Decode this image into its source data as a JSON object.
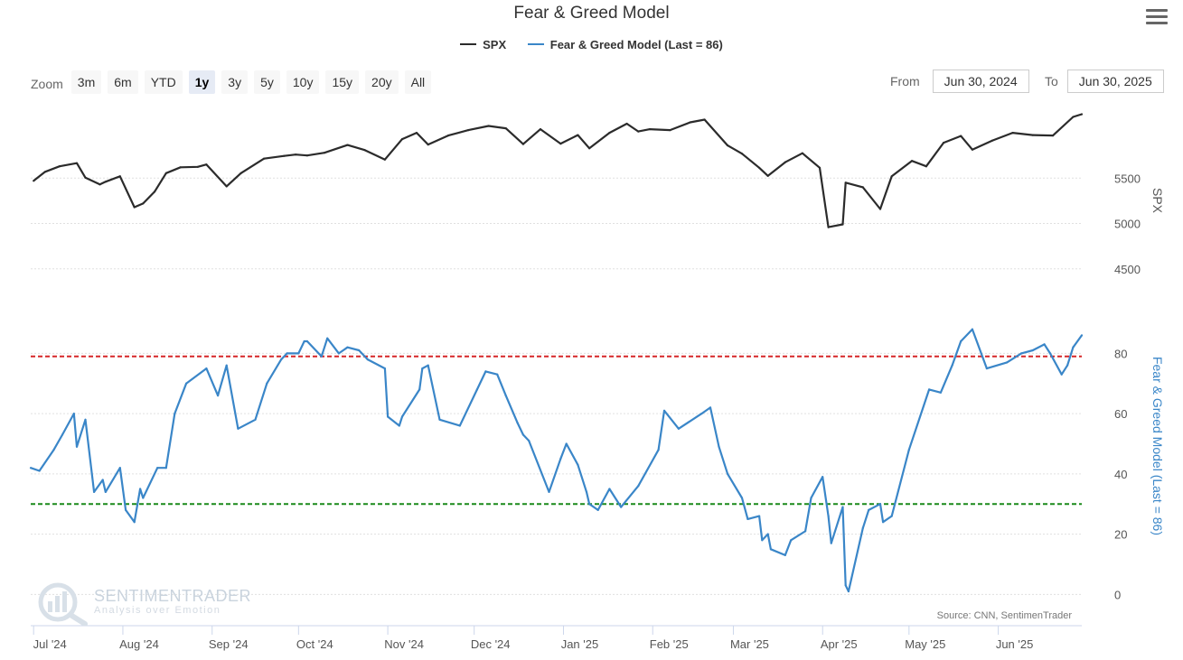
{
  "header": {
    "title": "Fear & Greed Model"
  },
  "legend": {
    "spx": "SPX",
    "fg": "Fear & Greed Model (Last = 86)"
  },
  "zoom": {
    "label": "Zoom",
    "buttons": [
      "3m",
      "6m",
      "YTD",
      "1y",
      "3y",
      "5y",
      "10y",
      "15y",
      "20y",
      "All"
    ],
    "active": "1y"
  },
  "range": {
    "from_label": "From",
    "from_value": "Jun 30, 2024",
    "to_label": "To",
    "to_value": "Jun 30, 2025"
  },
  "source": "Source: CNN, SentimenTrader",
  "watermark": {
    "name": "SENTIMENTRADER",
    "tagline": "Analysis over Emotion"
  },
  "colors": {
    "spx": "#2b2b2b",
    "fg": "#3a86c8",
    "greed_line": "#d62728",
    "fear_line": "#1a8a1a",
    "grid": "#e0e0e0"
  },
  "chart_data": {
    "type": "line",
    "x_tick_labels": [
      "Jul '24",
      "Aug '24",
      "Sep '24",
      "Oct '24",
      "Nov '24",
      "Dec '24",
      "Jan '25",
      "Feb '25",
      "Mar '25",
      "Apr '25",
      "May '25",
      "Jun '25"
    ],
    "x_range": [
      "2024-06-30",
      "2025-06-30"
    ],
    "panels": [
      {
        "name": "SPX",
        "ylabel": "SPX",
        "yaxis_side": "right",
        "ylim": [
          4000,
          6170
        ],
        "y_ticks": [
          4500,
          5000,
          5500
        ],
        "series": [
          {
            "name": "SPX",
            "x": [
              "2024-07-01",
              "2024-07-05",
              "2024-07-10",
              "2024-07-16",
              "2024-07-19",
              "2024-07-24",
              "2024-07-26",
              "2024-07-31",
              "2024-08-05",
              "2024-08-08",
              "2024-08-12",
              "2024-08-16",
              "2024-08-21",
              "2024-08-27",
              "2024-08-30",
              "2024-09-06",
              "2024-09-11",
              "2024-09-19",
              "2024-09-26",
              "2024-09-30",
              "2024-10-04",
              "2024-10-10",
              "2024-10-18",
              "2024-10-24",
              "2024-10-31",
              "2024-11-06",
              "2024-11-11",
              "2024-11-15",
              "2024-11-22",
              "2024-11-29",
              "2024-12-06",
              "2024-12-12",
              "2024-12-18",
              "2024-12-24",
              "2024-12-31",
              "2025-01-06",
              "2025-01-10",
              "2025-01-17",
              "2025-01-23",
              "2025-01-27",
              "2025-01-31",
              "2025-02-07",
              "2025-02-14",
              "2025-02-19",
              "2025-02-27",
              "2025-03-04",
              "2025-03-10",
              "2025-03-13",
              "2025-03-19",
              "2025-03-25",
              "2025-03-31",
              "2025-04-03",
              "2025-04-08",
              "2025-04-09",
              "2025-04-15",
              "2025-04-21",
              "2025-04-25",
              "2025-05-02",
              "2025-05-07",
              "2025-05-13",
              "2025-05-19",
              "2025-05-23",
              "2025-05-30",
              "2025-06-06",
              "2025-06-13",
              "2025-06-20",
              "2025-06-27",
              "2025-06-30"
            ],
            "values": [
              5470,
              5570,
              5630,
              5665,
              5505,
              5430,
              5460,
              5520,
              5180,
              5220,
              5350,
              5555,
              5620,
              5625,
              5650,
              5410,
              5555,
              5715,
              5745,
              5760,
              5750,
              5780,
              5865,
              5810,
              5705,
              5930,
              6000,
              5870,
              5970,
              6030,
              6075,
              6050,
              5875,
              6040,
              5880,
              5975,
              5830,
              6000,
              6100,
              6015,
              6040,
              6030,
              6115,
              6145,
              5860,
              5770,
              5615,
              5525,
              5675,
              5775,
              5615,
              4960,
              4990,
              5450,
              5400,
              5160,
              5520,
              5690,
              5630,
              5890,
              5965,
              5815,
              5915,
              6000,
              5975,
              5970,
              6175,
              6205
            ]
          }
        ]
      },
      {
        "name": "Fear & Greed Model",
        "ylabel": "Fear & Greed Model (Last = 86)",
        "yaxis_side": "right",
        "ylim": [
          -2,
          93
        ],
        "y_ticks": [
          0,
          20,
          40,
          60,
          80
        ],
        "reference_lines": [
          {
            "label": "greed_threshold",
            "value": 79,
            "style": "dashed",
            "color": "#d62728"
          },
          {
            "label": "fear_threshold",
            "value": 30,
            "style": "dashed",
            "color": "#1a8a1a"
          }
        ],
        "series": [
          {
            "name": "Fear & Greed Model",
            "x": [
              "2024-06-30",
              "2024-07-03",
              "2024-07-08",
              "2024-07-11",
              "2024-07-15",
              "2024-07-16",
              "2024-07-19",
              "2024-07-22",
              "2024-07-25",
              "2024-07-26",
              "2024-07-31",
              "2024-08-02",
              "2024-08-05",
              "2024-08-07",
              "2024-08-08",
              "2024-08-13",
              "2024-08-16",
              "2024-08-19",
              "2024-08-23",
              "2024-08-30",
              "2024-09-03",
              "2024-09-06",
              "2024-09-10",
              "2024-09-16",
              "2024-09-20",
              "2024-09-25",
              "2024-09-27",
              "2024-10-01",
              "2024-10-03",
              "2024-10-04",
              "2024-10-09",
              "2024-10-11",
              "2024-10-15",
              "2024-10-18",
              "2024-10-22",
              "2024-10-25",
              "2024-10-31",
              "2024-11-01",
              "2024-11-05",
              "2024-11-06",
              "2024-11-12",
              "2024-11-13",
              "2024-11-15",
              "2024-11-19",
              "2024-11-26",
              "2024-12-02",
              "2024-12-05",
              "2024-12-09",
              "2024-12-12",
              "2024-12-16",
              "2024-12-18",
              "2024-12-20",
              "2024-12-27",
              "2024-12-31",
              "2025-01-02",
              "2025-01-06",
              "2025-01-09",
              "2025-01-10",
              "2025-01-13",
              "2025-01-17",
              "2025-01-21",
              "2025-01-27",
              "2025-02-03",
              "2025-02-05",
              "2025-02-10",
              "2025-02-18",
              "2025-02-21",
              "2025-02-24",
              "2025-02-27",
              "2025-03-04",
              "2025-03-06",
              "2025-03-10",
              "2025-03-11",
              "2025-03-13",
              "2025-03-14",
              "2025-03-19",
              "2025-03-21",
              "2025-03-26",
              "2025-03-28",
              "2025-04-01",
              "2025-04-03",
              "2025-04-04",
              "2025-04-08",
              "2025-04-09",
              "2025-04-10",
              "2025-04-15",
              "2025-04-17",
              "2025-04-21",
              "2025-04-22",
              "2025-04-25",
              "2025-05-01",
              "2025-05-08",
              "2025-05-12",
              "2025-05-16",
              "2025-05-19",
              "2025-05-23",
              "2025-05-28",
              "2025-06-04",
              "2025-06-09",
              "2025-06-13",
              "2025-06-17",
              "2025-06-19",
              "2025-06-23",
              "2025-06-25",
              "2025-06-27",
              "2025-06-30"
            ],
            "values": [
              42,
              41,
              48,
              53,
              60,
              49,
              58,
              34,
              38,
              34,
              42,
              28,
              24,
              35,
              32,
              42,
              42,
              60,
              70,
              75,
              66,
              76,
              55,
              58,
              70,
              78,
              80,
              80,
              84,
              84,
              79,
              85,
              80,
              82,
              81,
              78,
              75,
              59,
              56,
              59,
              68,
              75,
              76,
              58,
              56,
              68,
              74,
              73,
              66,
              57,
              53,
              51,
              34,
              45,
              50,
              43,
              34,
              30,
              28,
              35,
              29,
              36,
              48,
              61,
              55,
              60,
              62,
              49,
              40,
              32,
              25,
              26,
              18,
              20,
              15,
              13,
              18,
              21,
              32,
              39,
              26,
              17,
              29,
              3,
              1,
              22,
              28,
              30,
              24,
              26,
              48,
              68,
              67,
              76,
              84,
              88,
              75,
              77,
              80,
              81,
              83,
              80,
              73,
              76,
              82,
              86
            ]
          }
        ]
      }
    ]
  }
}
